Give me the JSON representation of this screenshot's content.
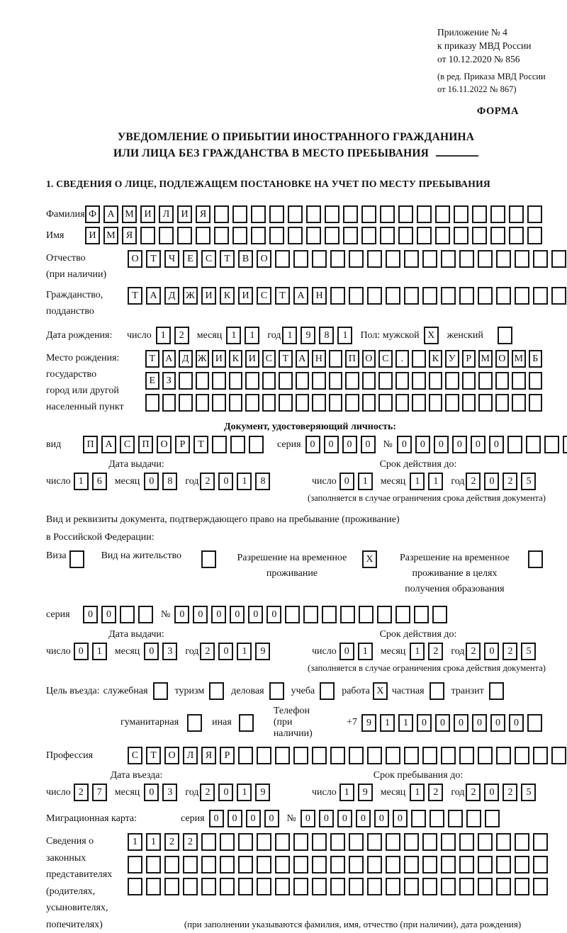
{
  "header": {
    "line1": "Приложение № 4",
    "line2": "к приказу МВД России",
    "line3": "от 10.12.2020 № 856",
    "line4": "(в ред. Приказа МВД России",
    "line5": "от 16.11.2022 № 867)",
    "form": "ФОРМА"
  },
  "title": {
    "line1": "УВЕДОМЛЕНИЕ О ПРИБЫТИИ ИНОСТРАННОГО ГРАЖДАНИНА",
    "line2": "ИЛИ ЛИЦА БЕЗ ГРАЖДАНСТВА В МЕСТО ПРЕБЫВАНИЯ"
  },
  "section1": "1. СВЕДЕНИЯ О ЛИЦЕ, ПОДЛЕЖАЩЕМ ПОСТАНОВКЕ НА УЧЕТ ПО МЕСТУ ПРЕБЫВАНИЯ",
  "labels": {
    "surname": "Фамилия",
    "name": "Имя",
    "patronymic1": "Отчество",
    "patronymic2": "(при наличии)",
    "citizenship1": "Гражданство,",
    "citizenship2": "подданство",
    "birthdate": "Дата рождения:",
    "day": "число",
    "month": "месяц",
    "year": "год",
    "sex_male": "Пол: мужской",
    "sex_female": "женский",
    "birthplace1": "Место рождения:",
    "birthplace2": "государство",
    "birthplace3": "город или другой",
    "birthplace4": "населенный пункт",
    "iddoc_head": "Документ, удостоверяющий личность:",
    "kind": "вид",
    "series": "серия",
    "number": "№",
    "issue_date": "Дата выдачи:",
    "valid_until": "Срок действия до:",
    "valid_note": "(заполняется в случае ограничения срока действия документа)",
    "resdoc1": "Вид и реквизиты документа, подтверждающего право на пребывание (проживание)",
    "resdoc2": "в Российской Федерации:",
    "visa": "Виза",
    "residence_permit": "Вид на жительство",
    "temp_permit1": "Разрешение на временное",
    "temp_permit2": "проживание",
    "temp_permit_edu1": "Разрешение на временное",
    "temp_permit_edu2": "проживание в целях",
    "temp_permit_edu3": "получения образования",
    "purpose": "Цель въезда:",
    "purpose_official": "служебная",
    "purpose_tourism": "туризм",
    "purpose_business": "деловая",
    "purpose_study": "учеба",
    "purpose_work": "работа",
    "purpose_private": "частная",
    "purpose_transit": "транзит",
    "purpose_humanitarian": "гуманитарная",
    "purpose_other": "иная",
    "phone": "Телефон (при наличии)",
    "phone_prefix": "+7",
    "profession": "Профессия",
    "entry_date": "Дата въезда:",
    "stay_until": "Срок пребывания до:",
    "migration_card": "Миграционная карта:",
    "reps1": "Сведения о",
    "reps2": "законных",
    "reps3": "представителях",
    "reps4": "(родителях,",
    "reps5": "усыновителях,",
    "reps6": "попечителях)",
    "reps_note": "(при заполнении указываются фамилия, имя, отчество (при наличии), дата рождения)"
  },
  "cells": {
    "surname": {
      "text": "ФАМИЛИЯ",
      "count": 25
    },
    "name": {
      "text": "ИМЯ",
      "count": 25
    },
    "patronymic": {
      "text": "ОТЧЕСТВО",
      "count": 24
    },
    "citizenship": {
      "text": "ТАДЖИКИСТАН",
      "count": 24
    },
    "birth_day": {
      "text": "12",
      "count": 2
    },
    "birth_month": {
      "text": "11",
      "count": 2
    },
    "birth_year": {
      "text": "1981",
      "count": 4
    },
    "birthplace_row1": {
      "text": "ТАДЖИКИСТАН ПОС. КУРМОМБ",
      "count": 24
    },
    "birthplace_row2": {
      "text": "ЕЗ",
      "count": 24
    },
    "birthplace_row3": {
      "text": "",
      "count": 24
    },
    "doc_kind": {
      "text": "ПАСПОРТ",
      "count": 10
    },
    "doc_series": {
      "text": "0000",
      "count": 4
    },
    "doc_number": {
      "text": "000000",
      "count": 10
    },
    "doc_issue_day": {
      "text": "16",
      "count": 2
    },
    "doc_issue_month": {
      "text": "08",
      "count": 2
    },
    "doc_issue_year": {
      "text": "2018",
      "count": 4
    },
    "doc_valid_day": {
      "text": "01",
      "count": 2
    },
    "doc_valid_month": {
      "text": "11",
      "count": 2
    },
    "doc_valid_year": {
      "text": "2025",
      "count": 4
    },
    "res_series": {
      "text": "00",
      "count": 4
    },
    "res_number": {
      "text": "000000",
      "count": 15
    },
    "res_issue_day": {
      "text": "01",
      "count": 2
    },
    "res_issue_month": {
      "text": "03",
      "count": 2
    },
    "res_issue_year": {
      "text": "2019",
      "count": 4
    },
    "res_valid_day": {
      "text": "01",
      "count": 2
    },
    "res_valid_month": {
      "text": "12",
      "count": 2
    },
    "res_valid_year": {
      "text": "2025",
      "count": 4
    },
    "phone": {
      "text": "911000000",
      "count": 10
    },
    "profession": {
      "text": "СТОЛЯР",
      "count": 24
    },
    "entry_day": {
      "text": "27",
      "count": 2
    },
    "entry_month": {
      "text": "03",
      "count": 2
    },
    "entry_year": {
      "text": "2019",
      "count": 4
    },
    "stay_day": {
      "text": "19",
      "count": 2
    },
    "stay_month": {
      "text": "12",
      "count": 2
    },
    "stay_year": {
      "text": "2025",
      "count": 4
    },
    "mig_series": {
      "text": "0000",
      "count": 4
    },
    "mig_number": {
      "text": "000000",
      "count": 11
    },
    "reps_row1": {
      "text": "1122",
      "count": 23
    },
    "reps_row2": {
      "text": "",
      "count": 23
    },
    "reps_row3": {
      "text": "",
      "count": 23
    }
  },
  "checks": {
    "male": "X",
    "female": "",
    "visa": "",
    "residence_permit": "",
    "temp_permit": "X",
    "temp_permit_edu": "",
    "purpose_official": "",
    "purpose_tourism": "",
    "purpose_business": "",
    "purpose_study": "",
    "purpose_work": "X",
    "purpose_private": "",
    "purpose_transit": "",
    "purpose_humanitarian": "",
    "purpose_other": ""
  }
}
